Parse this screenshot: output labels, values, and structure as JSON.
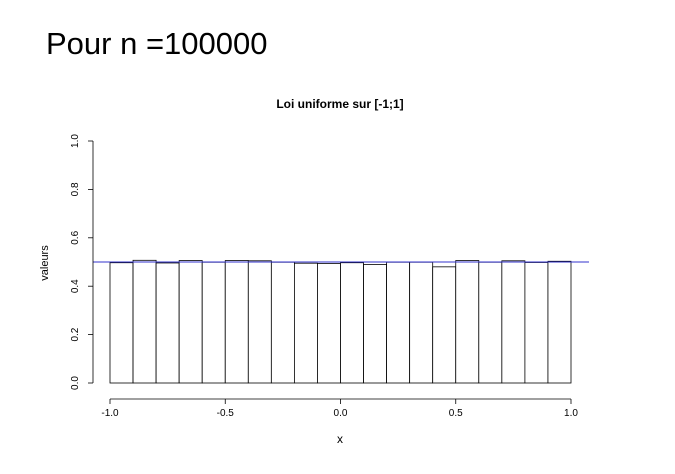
{
  "slide": {
    "title": "Pour n =100000"
  },
  "chart_data": {
    "type": "bar",
    "title": "Loi uniforme sur [-1;1]",
    "xlabel": "x",
    "ylabel": "valeurs",
    "xlim": [
      -1.0,
      1.0
    ],
    "ylim": [
      0.0,
      1.0
    ],
    "x_ticks": [
      "-1.0",
      "-0.5",
      "0.0",
      "0.5",
      "1.0"
    ],
    "y_ticks": [
      "0.0",
      "0.2",
      "0.4",
      "0.6",
      "0.8",
      "1.0"
    ],
    "bin_width": 0.1,
    "bins": [
      {
        "x0": -1.0,
        "x1": -0.9,
        "value": 0.497
      },
      {
        "x0": -0.9,
        "x1": -0.8,
        "value": 0.507
      },
      {
        "x0": -0.8,
        "x1": -0.7,
        "value": 0.496
      },
      {
        "x0": -0.7,
        "x1": -0.6,
        "value": 0.506
      },
      {
        "x0": -0.6,
        "x1": -0.5,
        "value": 0.499
      },
      {
        "x0": -0.5,
        "x1": -0.4,
        "value": 0.506
      },
      {
        "x0": -0.4,
        "x1": -0.3,
        "value": 0.505
      },
      {
        "x0": -0.3,
        "x1": -0.2,
        "value": 0.499
      },
      {
        "x0": -0.2,
        "x1": -0.1,
        "value": 0.495
      },
      {
        "x0": -0.1,
        "x1": 0.0,
        "value": 0.494
      },
      {
        "x0": 0.0,
        "x1": 0.1,
        "value": 0.497
      },
      {
        "x0": 0.1,
        "x1": 0.2,
        "value": 0.49
      },
      {
        "x0": 0.2,
        "x1": 0.3,
        "value": 0.499
      },
      {
        "x0": 0.3,
        "x1": 0.4,
        "value": 0.499
      },
      {
        "x0": 0.4,
        "x1": 0.5,
        "value": 0.48
      },
      {
        "x0": 0.5,
        "x1": 0.6,
        "value": 0.506
      },
      {
        "x0": 0.6,
        "x1": 0.7,
        "value": 0.499
      },
      {
        "x0": 0.7,
        "x1": 0.8,
        "value": 0.505
      },
      {
        "x0": 0.8,
        "x1": 0.9,
        "value": 0.498
      },
      {
        "x0": 0.9,
        "x1": 1.0,
        "value": 0.503
      }
    ],
    "reference_line": {
      "y": 0.5,
      "color": "#3333cc"
    },
    "bar_fill": "#ffffff",
    "bar_stroke": "#000000",
    "grid": false
  }
}
